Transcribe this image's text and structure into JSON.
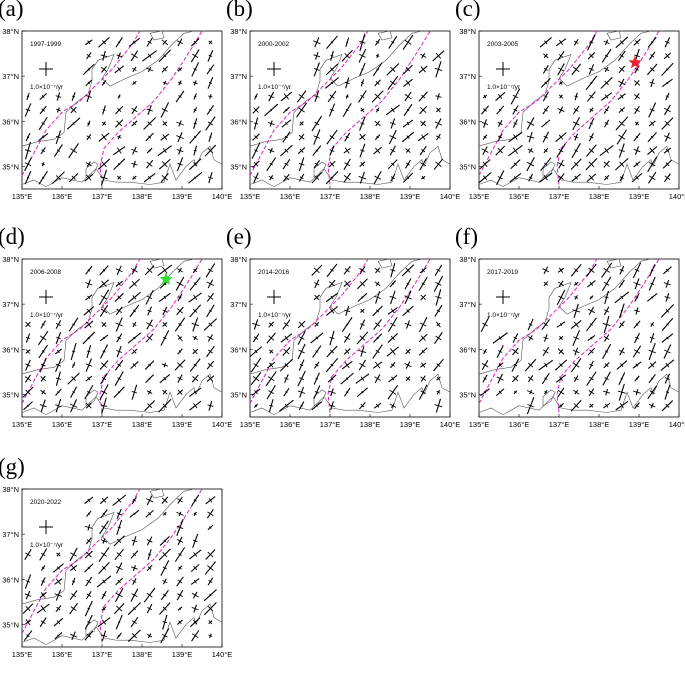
{
  "panels": [
    {
      "letter": "(a)",
      "period": "1997-1999",
      "marker": null
    },
    {
      "letter": "(b)",
      "period": "2000-2002",
      "marker": null
    },
    {
      "letter": "(c)",
      "period": "2003-2005",
      "marker": {
        "lon": 138.9,
        "lat": 37.3,
        "color": "#e8222a"
      }
    },
    {
      "letter": "(d)",
      "period": "2006-2008",
      "marker": {
        "lon": 138.6,
        "lat": 37.55,
        "color": "#33dd33"
      }
    },
    {
      "letter": "(e)",
      "period": "2014-2016",
      "marker": null
    },
    {
      "letter": "(f)",
      "period": "2017-2019",
      "marker": null
    },
    {
      "letter": "(g)",
      "period": "2020-2022",
      "marker": null
    }
  ],
  "scale_label": "1.0×10⁻⁷/yr",
  "x_ticks": [
    "135°E",
    "136°E",
    "137°E",
    "138°E",
    "139°E",
    "140°E"
  ],
  "y_ticks": [
    "35°N",
    "36°N",
    "37°N",
    "38°N"
  ],
  "lon_range": [
    135,
    140
  ],
  "lat_range": [
    34.5,
    38
  ],
  "colors": {
    "boundary": "#e020c8",
    "coast": "#555555",
    "strain": "#000000"
  }
}
